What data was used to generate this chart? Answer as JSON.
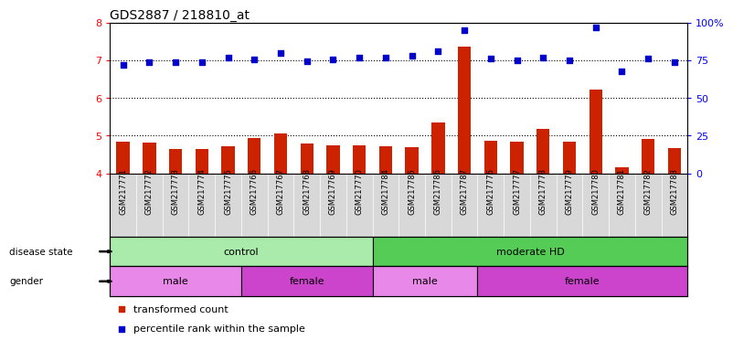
{
  "title": "GDS2887 / 218810_at",
  "samples": [
    "GSM217771",
    "GSM217772",
    "GSM217773",
    "GSM217774",
    "GSM217775",
    "GSM217766",
    "GSM217767",
    "GSM217768",
    "GSM217769",
    "GSM217770",
    "GSM217784",
    "GSM217785",
    "GSM217786",
    "GSM217787",
    "GSM217776",
    "GSM217777",
    "GSM217778",
    "GSM217779",
    "GSM217780",
    "GSM217781",
    "GSM217782",
    "GSM217783"
  ],
  "bar_values": [
    4.83,
    4.82,
    4.65,
    4.64,
    4.72,
    4.93,
    5.07,
    4.79,
    4.75,
    4.74,
    4.73,
    4.69,
    5.34,
    7.35,
    4.86,
    4.83,
    5.18,
    4.84,
    6.21,
    4.15,
    4.92,
    4.67
  ],
  "dot_values": [
    6.88,
    6.94,
    6.95,
    6.94,
    7.07,
    7.02,
    7.18,
    6.98,
    7.02,
    7.07,
    7.08,
    7.12,
    7.24,
    7.79,
    7.04,
    7.0,
    7.08,
    7.0,
    7.88,
    6.7,
    7.05,
    6.94
  ],
  "ylim_left": [
    4.0,
    8.0
  ],
  "ylim_right": [
    0,
    100
  ],
  "yticks_left": [
    4,
    5,
    6,
    7,
    8
  ],
  "yticks_right": [
    0,
    25,
    50,
    75,
    100
  ],
  "bar_color": "#cc2200",
  "dot_color": "#0000cc",
  "disease_groups": [
    {
      "label": "control",
      "start": 0,
      "end": 9,
      "color": "#aaeaaa"
    },
    {
      "label": "moderate HD",
      "start": 10,
      "end": 21,
      "color": "#55cc55"
    }
  ],
  "gender_groups": [
    {
      "label": "male",
      "start": 0,
      "end": 4,
      "color": "#e888e8"
    },
    {
      "label": "female",
      "start": 5,
      "end": 9,
      "color": "#cc44cc"
    },
    {
      "label": "male",
      "start": 10,
      "end": 13,
      "color": "#e888e8"
    },
    {
      "label": "female",
      "start": 14,
      "end": 21,
      "color": "#cc44cc"
    }
  ],
  "bar_bottom": 4.0,
  "legend_items": [
    {
      "label": "transformed count",
      "color": "#cc2200"
    },
    {
      "label": "percentile rank within the sample",
      "color": "#0000cc"
    }
  ]
}
